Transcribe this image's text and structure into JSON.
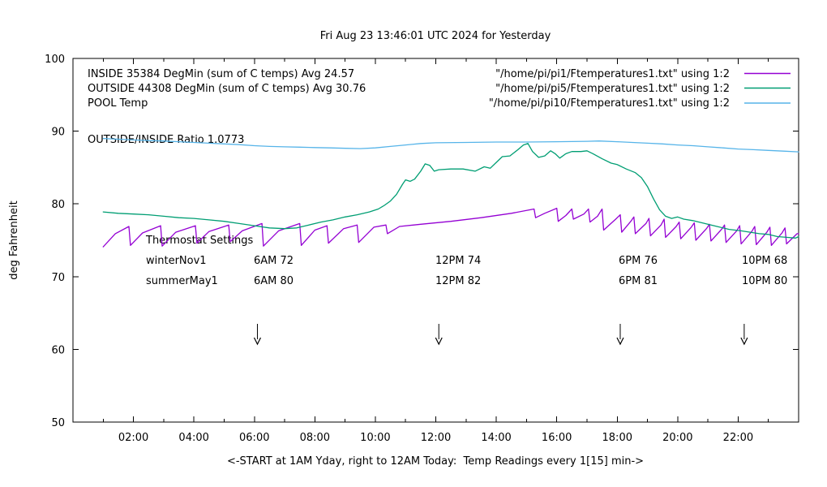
{
  "title": "Fri Aug 23 13:46:01 UTC 2024 for Yesterday",
  "ratio_label": "OUTSIDE/INSIDE Ratio 1.0773",
  "y_axis": {
    "label": "deg Fahrenheit",
    "ticks": [
      50,
      60,
      70,
      80,
      90,
      100
    ]
  },
  "x_axis": {
    "label": "<-START at 1AM Yday, right to 12AM Today:  Temp Readings every 1[15] min->",
    "major_ticks": [
      {
        "h": 2,
        "label": "02:00"
      },
      {
        "h": 4,
        "label": "04:00"
      },
      {
        "h": 6,
        "label": "06:00"
      },
      {
        "h": 8,
        "label": "08:00"
      },
      {
        "h": 10,
        "label": "10:00"
      },
      {
        "h": 12,
        "label": "12:00"
      },
      {
        "h": 14,
        "label": "14:00"
      },
      {
        "h": 16,
        "label": "16:00"
      },
      {
        "h": 18,
        "label": "18:00"
      },
      {
        "h": 20,
        "label": "20:00"
      },
      {
        "h": 22,
        "label": "22:00"
      }
    ],
    "minor_ticks": [
      1,
      3,
      5,
      7,
      9,
      11,
      13,
      15,
      17,
      19,
      21,
      23
    ]
  },
  "legend": {
    "entries": [
      {
        "label": "INSIDE 35384 DegMin (sum of C temps) Avg 24.57",
        "file": "\"/home/pi/pi1/Ftemperatures1.txt\" using 1:2",
        "color": "#9400d3"
      },
      {
        "label": "OUTSIDE 44308 DegMin (sum of C temps) Avg 30.76",
        "file": "\"/home/pi/pi5/Ftemperatures1.txt\" using 1:2",
        "color": "#009e73"
      },
      {
        "label": "POOL Temp",
        "file": "\"/home/pi/pi10/Ftemperatures1.txt\" using 1:2",
        "color": "#56b4e9"
      }
    ]
  },
  "thermostat": {
    "heading": "Thermostat Settings",
    "rows": [
      {
        "cells": [
          "winterNov1",
          "6AM 72",
          "12PM 74",
          "6PM 76",
          "10PM 68"
        ]
      },
      {
        "cells": [
          "summerMay1",
          "6AM 80",
          "12PM 82",
          "6PM 81",
          "10PM 80"
        ]
      }
    ]
  },
  "arrows_hours": [
    6.1,
    12.1,
    18.1,
    22.2
  ],
  "chart_data": {
    "type": "line",
    "title": "Fri Aug 23 13:46:01 UTC 2024 for Yesterday",
    "xlabel": "<-START at 1AM Yday, right to 12AM Today:  Temp Readings every 1[15] min->",
    "ylabel": "deg Fahrenheit",
    "xlim": [
      0,
      24
    ],
    "ylim": [
      50,
      100
    ],
    "grid": false,
    "legend_position": "top-inside",
    "x_units": "hours (0=12AM yesterday start, data begins 1AM)",
    "series": [
      {
        "name": "INSIDE",
        "color": "#9400d3",
        "points": [
          [
            1.0,
            74.1
          ],
          [
            1.4,
            75.9
          ],
          [
            1.85,
            76.9
          ],
          [
            1.9,
            74.3
          ],
          [
            2.3,
            76.0
          ],
          [
            2.9,
            77.0
          ],
          [
            2.95,
            74.2
          ],
          [
            3.4,
            76.1
          ],
          [
            4.05,
            77.0
          ],
          [
            4.1,
            74.6
          ],
          [
            4.5,
            76.2
          ],
          [
            5.15,
            77.1
          ],
          [
            5.2,
            74.8
          ],
          [
            5.6,
            76.3
          ],
          [
            6.25,
            77.3
          ],
          [
            6.3,
            74.2
          ],
          [
            6.8,
            76.3
          ],
          [
            7.5,
            77.3
          ],
          [
            7.55,
            74.3
          ],
          [
            8.0,
            76.4
          ],
          [
            8.4,
            77.0
          ],
          [
            8.45,
            74.6
          ],
          [
            8.95,
            76.6
          ],
          [
            9.4,
            77.1
          ],
          [
            9.45,
            74.7
          ],
          [
            9.95,
            76.8
          ],
          [
            10.35,
            77.1
          ],
          [
            10.4,
            75.9
          ],
          [
            10.8,
            76.9
          ],
          [
            11.5,
            77.2
          ],
          [
            12.5,
            77.6
          ],
          [
            13.5,
            78.1
          ],
          [
            14.5,
            78.7
          ],
          [
            15.25,
            79.3
          ],
          [
            15.3,
            78.1
          ],
          [
            15.6,
            78.7
          ],
          [
            16.0,
            79.4
          ],
          [
            16.05,
            77.6
          ],
          [
            16.3,
            78.4
          ],
          [
            16.5,
            79.3
          ],
          [
            16.55,
            77.9
          ],
          [
            16.9,
            78.6
          ],
          [
            17.05,
            79.3
          ],
          [
            17.1,
            77.5
          ],
          [
            17.35,
            78.3
          ],
          [
            17.5,
            79.3
          ],
          [
            17.55,
            76.4
          ],
          [
            17.95,
            77.9
          ],
          [
            18.1,
            78.5
          ],
          [
            18.15,
            76.1
          ],
          [
            18.45,
            77.6
          ],
          [
            18.55,
            78.2
          ],
          [
            18.6,
            75.9
          ],
          [
            18.95,
            77.3
          ],
          [
            19.05,
            78.0
          ],
          [
            19.1,
            75.6
          ],
          [
            19.45,
            77.1
          ],
          [
            19.55,
            77.9
          ],
          [
            19.6,
            75.4
          ],
          [
            19.95,
            76.9
          ],
          [
            20.05,
            77.5
          ],
          [
            20.1,
            75.2
          ],
          [
            20.45,
            76.8
          ],
          [
            20.55,
            77.4
          ],
          [
            20.6,
            75.0
          ],
          [
            20.95,
            76.6
          ],
          [
            21.05,
            77.2
          ],
          [
            21.1,
            74.9
          ],
          [
            21.45,
            76.5
          ],
          [
            21.55,
            77.1
          ],
          [
            21.6,
            74.7
          ],
          [
            21.95,
            76.3
          ],
          [
            22.05,
            77.0
          ],
          [
            22.1,
            74.5
          ],
          [
            22.45,
            76.2
          ],
          [
            22.55,
            76.9
          ],
          [
            22.6,
            74.4
          ],
          [
            22.95,
            76.1
          ],
          [
            23.05,
            76.8
          ],
          [
            23.1,
            74.3
          ],
          [
            23.45,
            76.0
          ],
          [
            23.55,
            76.7
          ],
          [
            23.6,
            74.5
          ],
          [
            23.95,
            75.9
          ],
          [
            24.0,
            75.9
          ]
        ]
      },
      {
        "name": "OUTSIDE",
        "color": "#009e73",
        "points": [
          [
            1.0,
            78.9
          ],
          [
            1.5,
            78.7
          ],
          [
            2.0,
            78.6
          ],
          [
            2.5,
            78.5
          ],
          [
            3.0,
            78.3
          ],
          [
            3.5,
            78.1
          ],
          [
            4.0,
            78.0
          ],
          [
            4.5,
            77.8
          ],
          [
            5.0,
            77.6
          ],
          [
            5.5,
            77.3
          ],
          [
            6.0,
            77.0
          ],
          [
            6.5,
            76.7
          ],
          [
            7.0,
            76.6
          ],
          [
            7.4,
            76.7
          ],
          [
            7.8,
            77.1
          ],
          [
            8.2,
            77.5
          ],
          [
            8.6,
            77.8
          ],
          [
            9.0,
            78.2
          ],
          [
            9.4,
            78.5
          ],
          [
            9.8,
            78.9
          ],
          [
            10.1,
            79.3
          ],
          [
            10.3,
            79.8
          ],
          [
            10.5,
            80.4
          ],
          [
            10.7,
            81.3
          ],
          [
            10.9,
            82.7
          ],
          [
            11.0,
            83.3
          ],
          [
            11.15,
            83.1
          ],
          [
            11.3,
            83.4
          ],
          [
            11.5,
            84.5
          ],
          [
            11.65,
            85.5
          ],
          [
            11.8,
            85.3
          ],
          [
            11.95,
            84.5
          ],
          [
            12.1,
            84.7
          ],
          [
            12.5,
            84.8
          ],
          [
            12.9,
            84.8
          ],
          [
            13.3,
            84.5
          ],
          [
            13.6,
            85.1
          ],
          [
            13.8,
            84.9
          ],
          [
            14.0,
            85.7
          ],
          [
            14.2,
            86.5
          ],
          [
            14.45,
            86.6
          ],
          [
            14.7,
            87.4
          ],
          [
            14.9,
            88.1
          ],
          [
            15.05,
            88.3
          ],
          [
            15.2,
            87.2
          ],
          [
            15.4,
            86.4
          ],
          [
            15.6,
            86.6
          ],
          [
            15.8,
            87.3
          ],
          [
            15.95,
            86.9
          ],
          [
            16.1,
            86.3
          ],
          [
            16.3,
            86.9
          ],
          [
            16.5,
            87.2
          ],
          [
            16.8,
            87.2
          ],
          [
            17.0,
            87.3
          ],
          [
            17.2,
            86.9
          ],
          [
            17.5,
            86.2
          ],
          [
            17.8,
            85.6
          ],
          [
            18.0,
            85.4
          ],
          [
            18.3,
            84.8
          ],
          [
            18.6,
            84.3
          ],
          [
            18.8,
            83.6
          ],
          [
            19.0,
            82.4
          ],
          [
            19.2,
            80.7
          ],
          [
            19.4,
            79.2
          ],
          [
            19.6,
            78.3
          ],
          [
            19.8,
            78.0
          ],
          [
            20.0,
            78.2
          ],
          [
            20.2,
            77.9
          ],
          [
            20.5,
            77.7
          ],
          [
            20.9,
            77.3
          ],
          [
            21.3,
            76.9
          ],
          [
            21.7,
            76.5
          ],
          [
            22.1,
            76.3
          ],
          [
            22.4,
            76.1
          ],
          [
            22.7,
            75.9
          ],
          [
            23.0,
            75.8
          ],
          [
            23.3,
            75.5
          ],
          [
            23.6,
            75.4
          ],
          [
            23.9,
            75.3
          ],
          [
            24.0,
            75.5
          ]
        ]
      },
      {
        "name": "POOL",
        "color": "#56b4e9",
        "points": [
          [
            1.0,
            89.0
          ],
          [
            1.5,
            88.9
          ],
          [
            2.0,
            88.8
          ],
          [
            2.5,
            88.7
          ],
          [
            3.0,
            88.65
          ],
          [
            3.5,
            88.55
          ],
          [
            4.0,
            88.45
          ],
          [
            4.5,
            88.35
          ],
          [
            5.0,
            88.25
          ],
          [
            5.5,
            88.15
          ],
          [
            6.0,
            88.0
          ],
          [
            6.5,
            87.9
          ],
          [
            7.0,
            87.85
          ],
          [
            7.5,
            87.8
          ],
          [
            8.0,
            87.75
          ],
          [
            8.5,
            87.7
          ],
          [
            9.0,
            87.65
          ],
          [
            9.5,
            87.6
          ],
          [
            10.0,
            87.7
          ],
          [
            10.5,
            87.9
          ],
          [
            11.0,
            88.1
          ],
          [
            11.5,
            88.3
          ],
          [
            12.0,
            88.4
          ],
          [
            13.0,
            88.45
          ],
          [
            14.0,
            88.5
          ],
          [
            15.0,
            88.5
          ],
          [
            16.0,
            88.55
          ],
          [
            17.0,
            88.6
          ],
          [
            17.4,
            88.65
          ],
          [
            18.0,
            88.55
          ],
          [
            18.5,
            88.45
          ],
          [
            19.0,
            88.35
          ],
          [
            19.5,
            88.25
          ],
          [
            20.0,
            88.1
          ],
          [
            20.5,
            88.0
          ],
          [
            21.0,
            87.85
          ],
          [
            21.5,
            87.7
          ],
          [
            22.0,
            87.55
          ],
          [
            22.5,
            87.45
          ],
          [
            23.0,
            87.35
          ],
          [
            23.5,
            87.25
          ],
          [
            24.0,
            87.15
          ]
        ]
      }
    ]
  }
}
